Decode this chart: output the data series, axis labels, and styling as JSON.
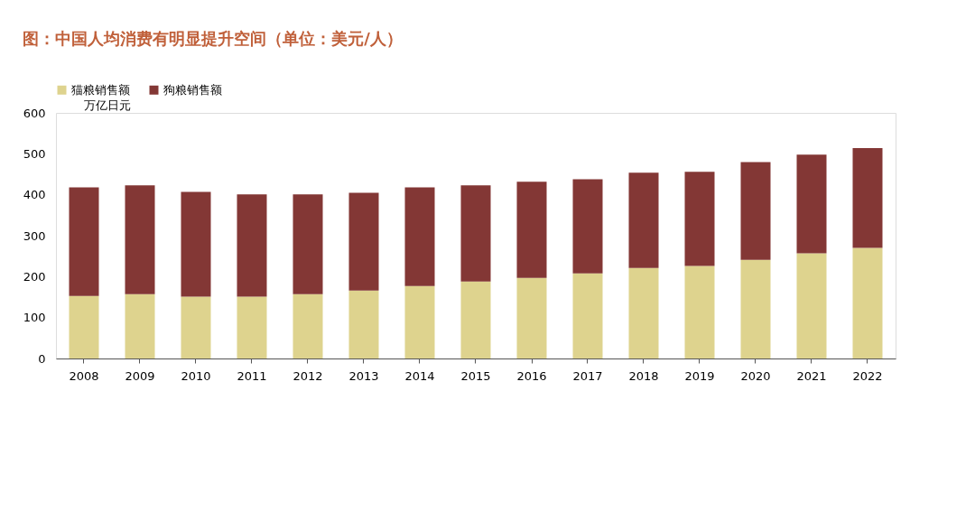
{
  "chart_data": {
    "type": "bar",
    "stacked": true,
    "title": "图：中国人均消费有明显提升空间（单位：美元/人）",
    "ylabel": "万亿日元",
    "categories": [
      "2008",
      "2009",
      "2010",
      "2011",
      "2012",
      "2013",
      "2014",
      "2015",
      "2016",
      "2017",
      "2018",
      "2019",
      "2020",
      "2021",
      "2022"
    ],
    "series": [
      {
        "name": "猫粮销售额",
        "color": "#ded38e",
        "values": [
          153,
          157,
          151,
          151,
          157,
          166,
          177,
          188,
          197,
          208,
          221,
          226,
          241,
          257,
          270
        ]
      },
      {
        "name": "狗粮销售额",
        "color": "#833735",
        "values": [
          265,
          266,
          256,
          250,
          244,
          239,
          241,
          235,
          235,
          230,
          233,
          230,
          239,
          241,
          244
        ]
      }
    ],
    "ylim": [
      0,
      600
    ],
    "yticks": [
      0,
      100,
      200,
      300,
      400,
      500,
      600
    ],
    "grid": false,
    "legend": "top"
  }
}
